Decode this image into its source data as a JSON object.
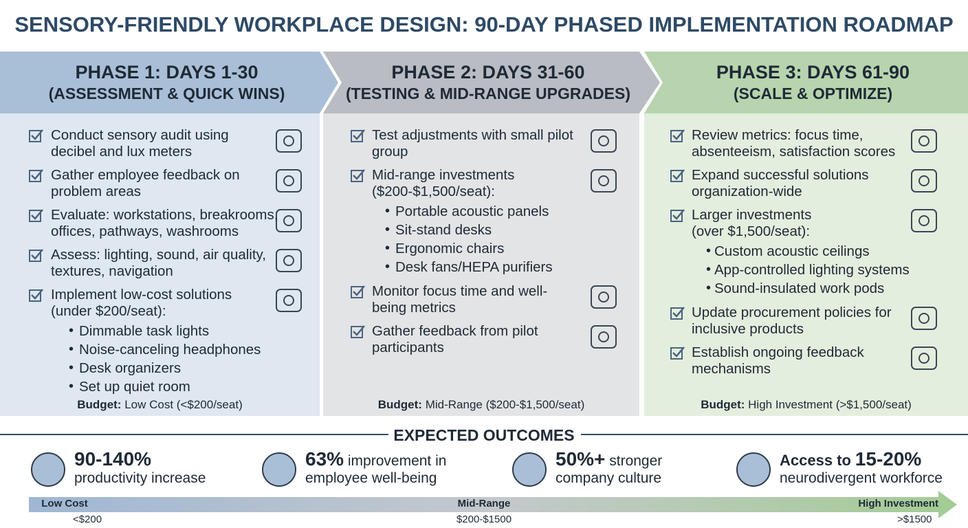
{
  "title": "SENSORY-FRIENDLY WORKPLACE DESIGN: 90-DAY PHASED IMPLEMENTATION ROADMAP",
  "phases": [
    {
      "title": "PHASE 1: DAYS 1-30",
      "subtitle": "(ASSESSMENT & QUICK WINS)",
      "items": [
        {
          "lines": [
            "Conduct sensory audit using",
            "decibel and lux meters"
          ]
        },
        {
          "lines": [
            "Gather employee feedback on",
            "problem areas"
          ]
        },
        {
          "lines": [
            "Evaluate: workstations, breakrooms,",
            "offices, pathways, washrooms"
          ]
        },
        {
          "lines": [
            "Assess: lighting, sound, air quality,",
            "textures, navigation"
          ]
        },
        {
          "lines": [
            "Implement low-cost solutions",
            "(under $200/seat):"
          ],
          "subitems": [
            "Dimmable task lights",
            "Noise-canceling headphones",
            "Desk organizers",
            "Set up quiet room"
          ]
        }
      ],
      "budget": {
        "label": "Budget:",
        "value": "Low Cost (<$200/seat)"
      }
    },
    {
      "title": "PHASE 2: DAYS 31-60",
      "subtitle": "(TESTING & MID-RANGE UPGRADES)",
      "items": [
        {
          "lines": [
            "Test adjustments with small pilot",
            "group"
          ]
        },
        {
          "lines": [
            "Mid-range investments",
            "($200-$1,500/seat):"
          ],
          "subitems": [
            "Portable acoustic panels",
            "Sit-stand desks",
            "Ergonomic chairs",
            "Desk fans/HEPA purifiers"
          ]
        },
        {
          "lines": [
            "Monitor focus time and well-",
            "being metrics"
          ]
        },
        {
          "lines": [
            "Gather feedback from pilot",
            "participants"
          ]
        }
      ],
      "budget": {
        "label": "Budget:",
        "value": "Mid-Range ($200-$1,500/seat)"
      }
    },
    {
      "title": "PHASE 3: DAYS 61-90",
      "subtitle": "(SCALE & OPTIMIZE)",
      "items": [
        {
          "lines": [
            "Review metrics: focus time,",
            "absenteeism, satisfaction scores"
          ]
        },
        {
          "lines": [
            "Expand successful solutions",
            "organization-wide"
          ]
        },
        {
          "lines": [
            "Larger investments",
            "(over $1,500/seat):"
          ],
          "subitems": [
            "Custom acoustic ceilings",
            "App-controlled lighting systems",
            "Sound-insulated work pods"
          ]
        },
        {
          "lines": [
            "Update procurement policies for",
            "inclusive products"
          ]
        },
        {
          "lines": [
            "Establish ongoing feedback",
            "mechanisms"
          ]
        }
      ],
      "budget": {
        "label": "Budget:",
        "value": "High Investment (>$1,500/seat)"
      }
    }
  ],
  "outcomes": {
    "heading": "EXPECTED OUTCOMES",
    "items": [
      {
        "lead": "90-140%",
        "line2": "productivity increase"
      },
      {
        "lead": "63%",
        "rest": "improvement in",
        "line2": "employee well-being"
      },
      {
        "lead": "50%+",
        "rest": "stronger",
        "line2": "company culture"
      },
      {
        "pre": "Access to",
        "lead": "15-20%",
        "line2": "neurodivergent workforce"
      }
    ]
  },
  "scale": [
    {
      "name": "Low Cost",
      "range": "<$200"
    },
    {
      "name": "Mid-Range",
      "range": "$200-$1500"
    },
    {
      "name": "High Investment",
      "range": ">$1500"
    }
  ]
}
